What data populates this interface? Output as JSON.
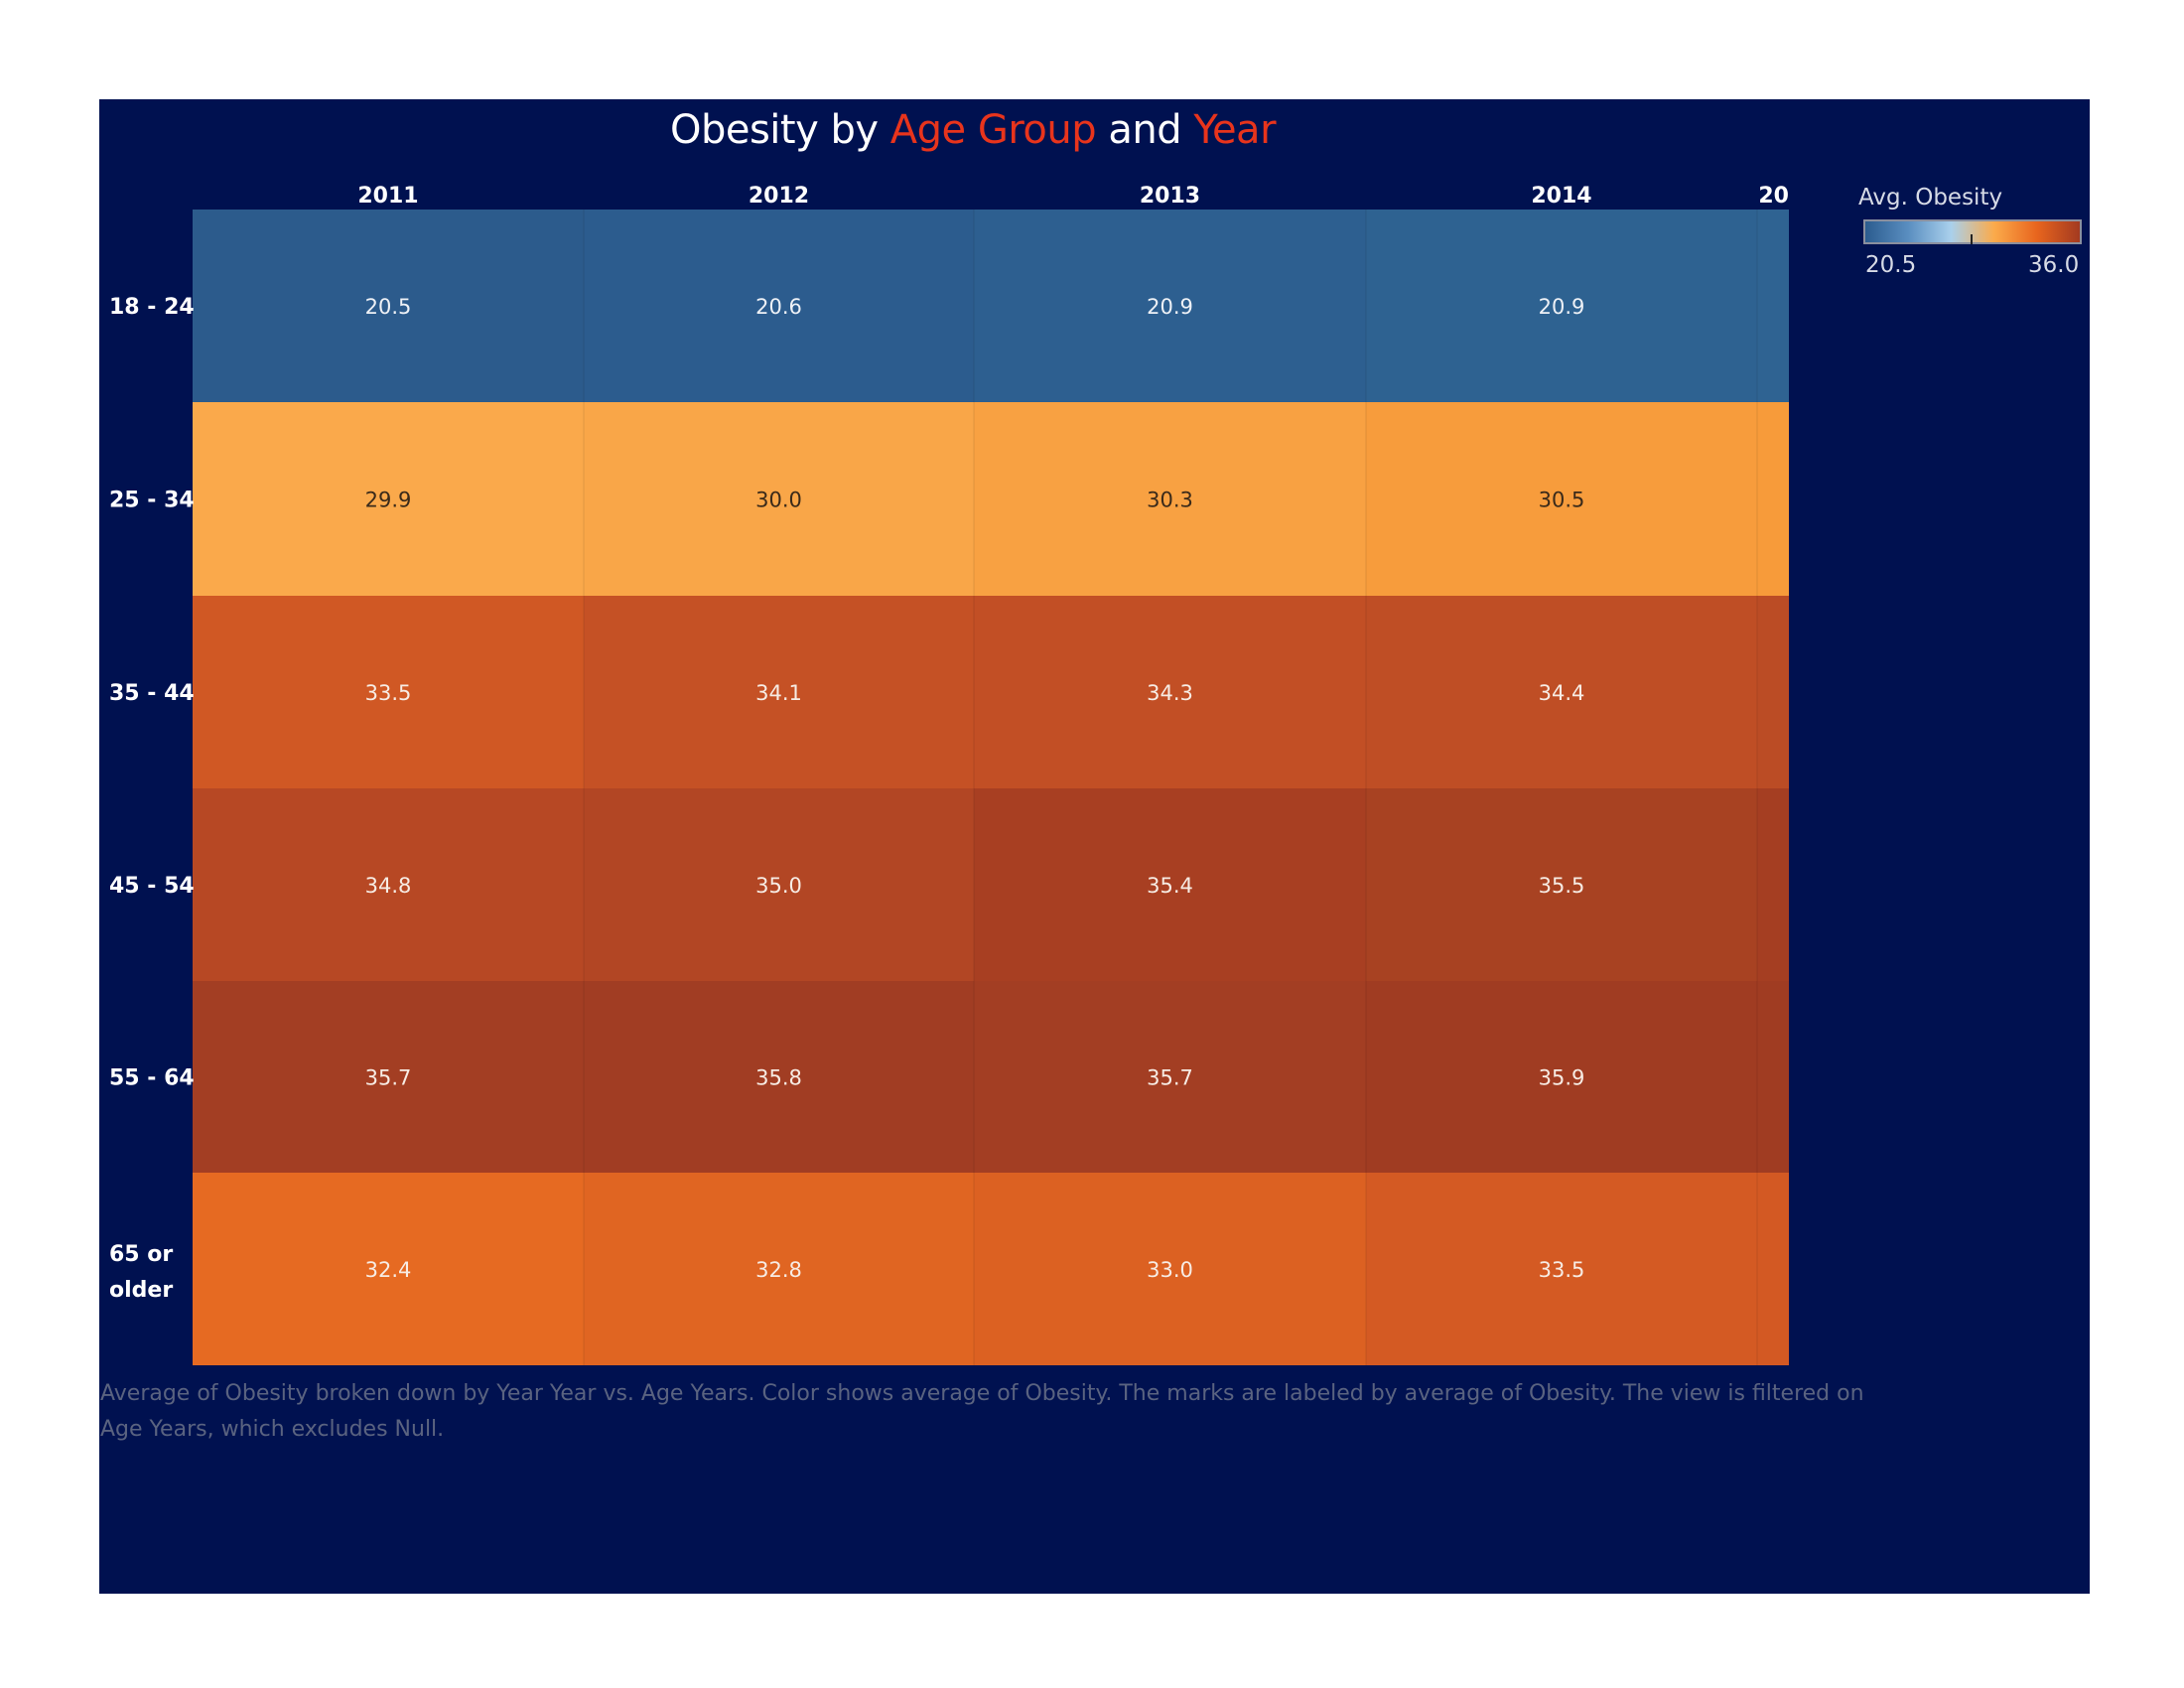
{
  "title": {
    "parts": [
      {
        "text": "Obesity by ",
        "highlight": false
      },
      {
        "text": "Age Group",
        "highlight": true
      },
      {
        "text": " and ",
        "highlight": false
      },
      {
        "text": "Year",
        "highlight": true
      }
    ]
  },
  "legend": {
    "title": "Avg. Obesity",
    "min_label": "20.5",
    "max_label": "36.0",
    "colors": [
      "#2b5c8f",
      "#5a8ec0",
      "#a9d0ec",
      "#fbab4b",
      "#e8651e",
      "#a33a20"
    ]
  },
  "caption": "Average of Obesity broken down by Year Year vs. Age Years.  Color shows average of Obesity.  The marks are labeled by average of Obesity. The view is filtered on Age Years, which excludes Null.",
  "chart_data": {
    "type": "heatmap",
    "title": "Obesity by Age Group and Year",
    "x": [
      "2011",
      "2012",
      "2013",
      "2014",
      "20"
    ],
    "y": [
      "18 - 24",
      "25 - 34",
      "35 - 44",
      "45 - 54",
      "55 - 64",
      "65 or older"
    ],
    "values": [
      [
        20.5,
        20.6,
        20.9,
        20.9,
        null
      ],
      [
        29.9,
        30.0,
        30.3,
        30.5,
        null
      ],
      [
        33.5,
        34.1,
        34.3,
        34.4,
        null
      ],
      [
        34.8,
        35.0,
        35.4,
        35.5,
        null
      ],
      [
        35.7,
        35.8,
        35.7,
        35.9,
        null
      ],
      [
        32.4,
        32.8,
        33.0,
        33.5,
        null
      ]
    ],
    "colorscale": {
      "min": 20.5,
      "max": 36.0,
      "label": "Avg. Obesity"
    },
    "cell_colors": [
      [
        "#2c5b8c",
        "#2c5c8e",
        "#2d5f90",
        "#2e6291",
        "#2f6392"
      ],
      [
        "#faa94b",
        "#f9a648",
        "#f8a142",
        "#f79c3c",
        "#f79b3a"
      ],
      [
        "#d05824",
        "#c55125",
        "#c24f25",
        "#bf4e25",
        "#bb4c25"
      ],
      [
        "#b74824",
        "#b24624",
        "#a83f22",
        "#a84222",
        "#a53e22"
      ],
      [
        "#a33e23",
        "#a13d23",
        "#a33e23",
        "#a03c22",
        "#a03c22"
      ],
      [
        "#e66a22",
        "#e06522",
        "#dc6122",
        "#d45a23",
        "#d35923"
      ]
    ],
    "label_colors": [
      [
        "#eef1f6",
        "#eef1f6",
        "#eef1f6",
        "#eef1f6",
        "#eef1f6"
      ],
      [
        "#3a2a1a",
        "#3a2a1a",
        "#3a2a1a",
        "#3a2a1a",
        "#3a2a1a"
      ],
      [
        "#f7ece4",
        "#f7ece4",
        "#f7ece4",
        "#f7ece4",
        "#f7ece4"
      ],
      [
        "#f7ece4",
        "#f7ece4",
        "#f7ece4",
        "#f7ece4",
        "#f7ece4"
      ],
      [
        "#f7ece4",
        "#f7ece4",
        "#f7ece4",
        "#f7ece4",
        "#f7ece4"
      ],
      [
        "#f7ece4",
        "#f7ece4",
        "#f7ece4",
        "#f7ece4",
        "#f7ece4"
      ]
    ]
  }
}
